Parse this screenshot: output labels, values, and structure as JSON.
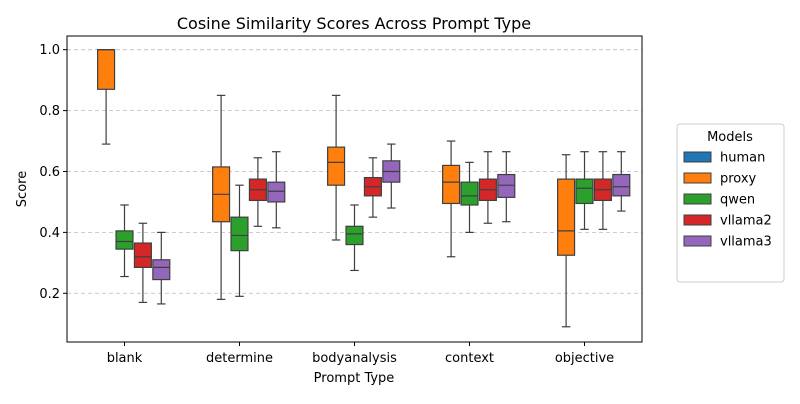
{
  "chart_data": {
    "type": "box",
    "title": "Cosine Similarity Scores Across Prompt Type",
    "xlabel": "Prompt Type",
    "ylabel": "Score",
    "categories": [
      "blank",
      "determine",
      "bodyanalysis",
      "context",
      "objective"
    ],
    "ylim": [
      0.04,
      1.045
    ],
    "yticks": [
      0.2,
      0.4,
      0.6,
      0.8,
      1.0
    ],
    "ytick_labels": [
      "0.2",
      "0.4",
      "0.6",
      "0.8",
      "1.0"
    ],
    "grid": "horizontal-dashed",
    "legend": {
      "title": "Models",
      "placement": "right"
    },
    "series": [
      {
        "name": "human",
        "color": "#1f77b4",
        "boxes": [
          null,
          null,
          null,
          null,
          null
        ]
      },
      {
        "name": "proxy",
        "color": "#ff7f0e",
        "boxes": [
          {
            "whislo": 0.69,
            "q1": 0.87,
            "med": 1.0,
            "q3": 1.0,
            "whishi": 1.0
          },
          {
            "whislo": 0.18,
            "q1": 0.435,
            "med": 0.525,
            "q3": 0.615,
            "whishi": 0.85
          },
          {
            "whislo": 0.375,
            "q1": 0.555,
            "med": 0.63,
            "q3": 0.68,
            "whishi": 0.85
          },
          {
            "whislo": 0.32,
            "q1": 0.495,
            "med": 0.565,
            "q3": 0.62,
            "whishi": 0.7
          },
          {
            "whislo": 0.09,
            "q1": 0.325,
            "med": 0.405,
            "q3": 0.575,
            "whishi": 0.655
          }
        ]
      },
      {
        "name": "qwen",
        "color": "#2ca02c",
        "boxes": [
          {
            "whislo": 0.255,
            "q1": 0.345,
            "med": 0.37,
            "q3": 0.405,
            "whishi": 0.49
          },
          {
            "whislo": 0.19,
            "q1": 0.34,
            "med": 0.39,
            "q3": 0.45,
            "whishi": 0.555
          },
          {
            "whislo": 0.275,
            "q1": 0.36,
            "med": 0.395,
            "q3": 0.42,
            "whishi": 0.49
          },
          {
            "whislo": 0.4,
            "q1": 0.49,
            "med": 0.52,
            "q3": 0.565,
            "whishi": 0.63
          },
          {
            "whislo": 0.41,
            "q1": 0.495,
            "med": 0.545,
            "q3": 0.575,
            "whishi": 0.665
          }
        ]
      },
      {
        "name": "vllama2",
        "color": "#d62728",
        "boxes": [
          {
            "whislo": 0.17,
            "q1": 0.285,
            "med": 0.32,
            "q3": 0.365,
            "whishi": 0.43
          },
          {
            "whislo": 0.42,
            "q1": 0.505,
            "med": 0.54,
            "q3": 0.575,
            "whishi": 0.645
          },
          {
            "whislo": 0.45,
            "q1": 0.52,
            "med": 0.55,
            "q3": 0.58,
            "whishi": 0.645
          },
          {
            "whislo": 0.43,
            "q1": 0.505,
            "med": 0.54,
            "q3": 0.575,
            "whishi": 0.665
          },
          {
            "whislo": 0.41,
            "q1": 0.505,
            "med": 0.54,
            "q3": 0.575,
            "whishi": 0.665
          }
        ]
      },
      {
        "name": "vllama3",
        "color": "#9467bd",
        "boxes": [
          {
            "whislo": 0.165,
            "q1": 0.245,
            "med": 0.285,
            "q3": 0.31,
            "whishi": 0.4
          },
          {
            "whislo": 0.415,
            "q1": 0.5,
            "med": 0.535,
            "q3": 0.565,
            "whishi": 0.665
          },
          {
            "whislo": 0.48,
            "q1": 0.565,
            "med": 0.6,
            "q3": 0.635,
            "whishi": 0.69
          },
          {
            "whislo": 0.435,
            "q1": 0.515,
            "med": 0.555,
            "q3": 0.59,
            "whishi": 0.665
          },
          {
            "whislo": 0.47,
            "q1": 0.52,
            "med": 0.55,
            "q3": 0.59,
            "whishi": 0.665
          }
        ]
      }
    ]
  }
}
